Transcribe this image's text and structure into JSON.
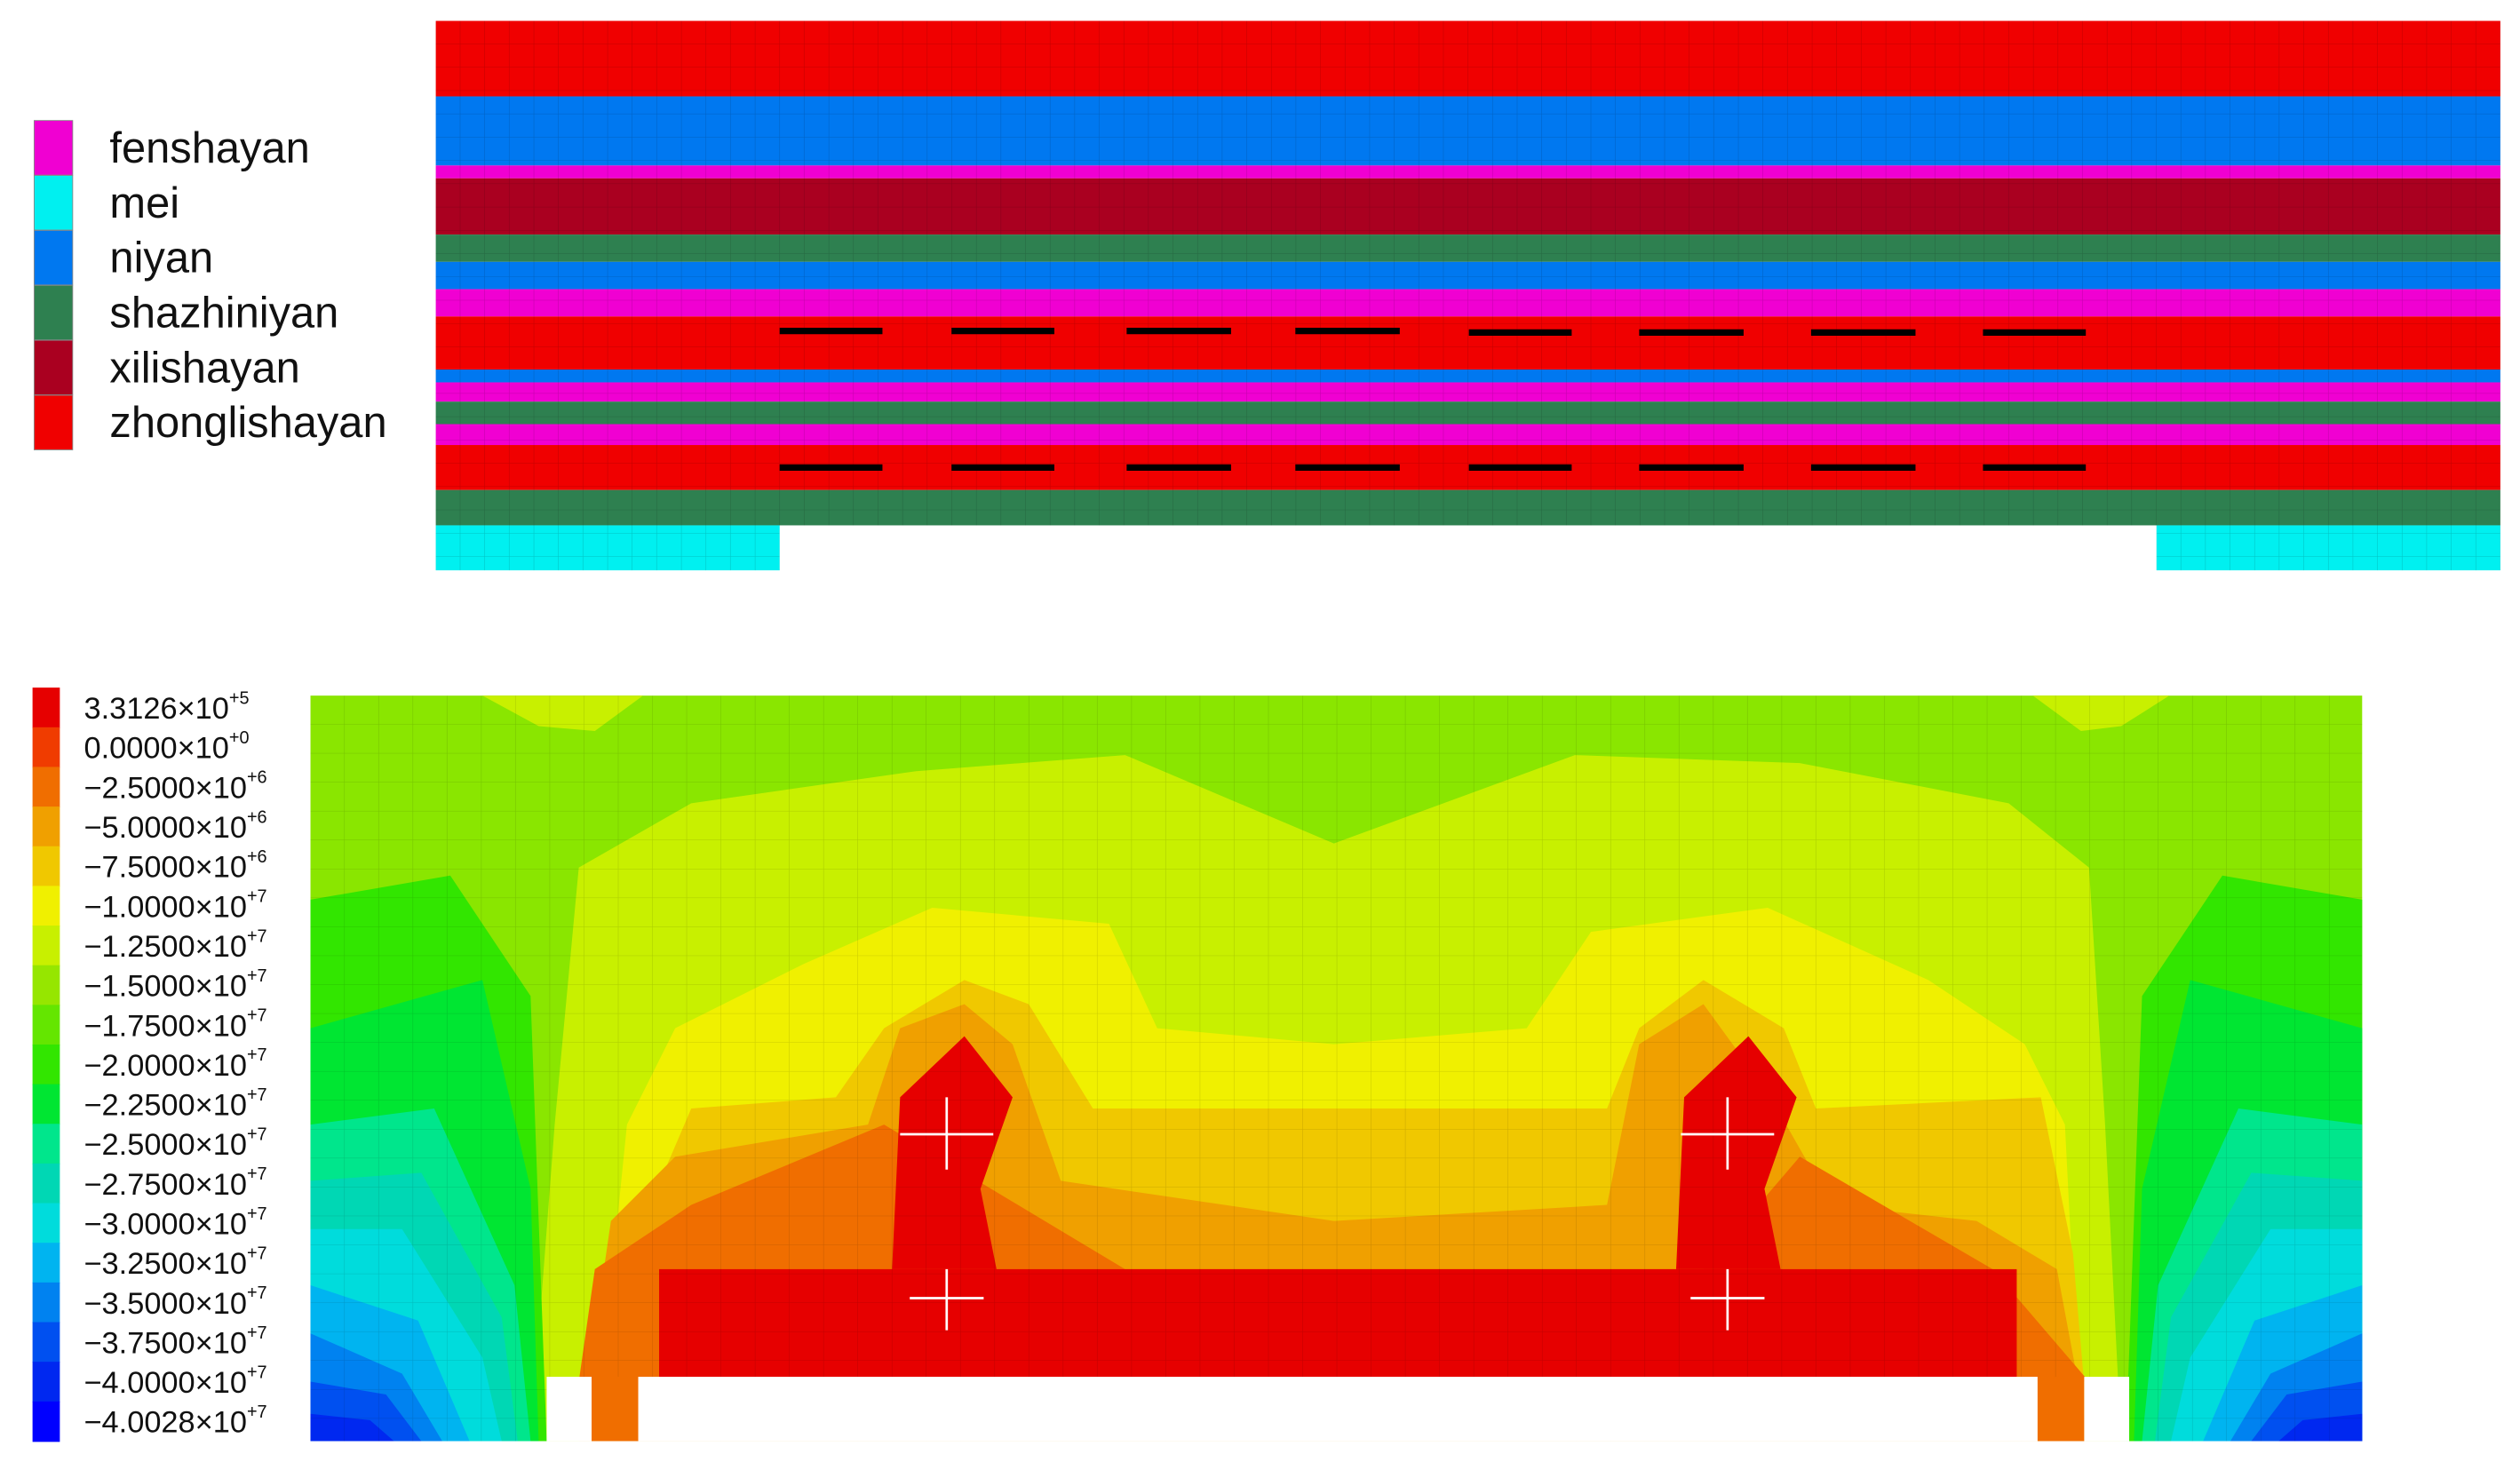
{
  "material_legend": [
    {
      "name": "fenshayan",
      "color": "#f000d2"
    },
    {
      "name": "mei",
      "color": "#00f0f0"
    },
    {
      "name": "niyan",
      "color": "#0078f0"
    },
    {
      "name": "shazhiniyan",
      "color": "#2e8050"
    },
    {
      "name": "xilishayan",
      "color": "#aa0020"
    },
    {
      "name": "zhonglishayan",
      "color": "#f00000"
    }
  ],
  "stress_legend": [
    {
      "base": "3.3126×10",
      "exp": "+5",
      "color": "#e60000"
    },
    {
      "base": "0.0000×10",
      "exp": "+0",
      "color": "#f03c00"
    },
    {
      "base": "−2.5000×10",
      "exp": "+6",
      "color": "#f06e00"
    },
    {
      "base": "−5.0000×10",
      "exp": "+6",
      "color": "#f0a000"
    },
    {
      "base": "−7.5000×10",
      "exp": "+6",
      "color": "#f0c800"
    },
    {
      "base": "−1.0000×10",
      "exp": "+7",
      "color": "#f0f000"
    },
    {
      "base": "−1.2500×10",
      "exp": "+7",
      "color": "#c8f000"
    },
    {
      "base": "−1.5000×10",
      "exp": "+7",
      "color": "#96e600"
    },
    {
      "base": "−1.7500×10",
      "exp": "+7",
      "color": "#64e600"
    },
    {
      "base": "−2.0000×10",
      "exp": "+7",
      "color": "#32e600"
    },
    {
      "base": "−2.2500×10",
      "exp": "+7",
      "color": "#00e632"
    },
    {
      "base": "−2.5000×10",
      "exp": "+7",
      "color": "#00e68c"
    },
    {
      "base": "−2.7500×10",
      "exp": "+7",
      "color": "#00d7b4"
    },
    {
      "base": "−3.0000×10",
      "exp": "+7",
      "color": "#00dcdc"
    },
    {
      "base": "−3.2500×10",
      "exp": "+7",
      "color": "#00b4f0"
    },
    {
      "base": "−3.5000×10",
      "exp": "+7",
      "color": "#0082f0"
    },
    {
      "base": "−3.7500×10",
      "exp": "+7",
      "color": "#0050f0"
    },
    {
      "base": "−4.0000×10",
      "exp": "+7",
      "color": "#0028f0"
    },
    {
      "base": "−4.0028×10",
      "exp": "+7",
      "color": "#0000ff"
    }
  ]
}
